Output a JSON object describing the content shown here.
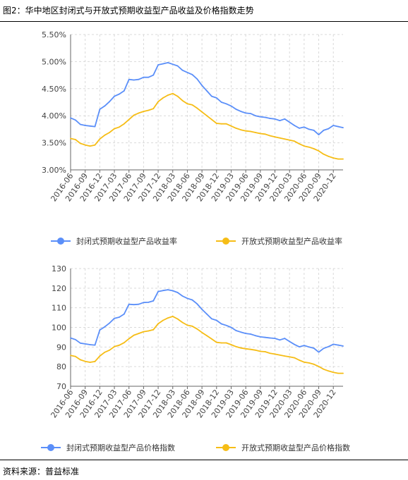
{
  "figure": {
    "title": "图2：华中地区封闭式与开放式预期收益型产品收益及价格指数走势",
    "source": "资料来源：普益标准"
  },
  "colors": {
    "closed": "#5b8ff9",
    "open": "#f6bd16",
    "grid": "#d9d9d9",
    "axis": "#666666"
  },
  "chart_data": [
    {
      "type": "line",
      "x_tick_labels": [
        "2016-06",
        "2016-09",
        "2016-12",
        "2017-03",
        "2017-06",
        "2017-09",
        "2017-12",
        "2018-03",
        "2018-06",
        "2018-09",
        "2018-12",
        "2019-03",
        "2019-06",
        "2019-09",
        "2019-12",
        "2020-03",
        "2020-06",
        "2020-09",
        "2020-12"
      ],
      "x_start": "2016-06",
      "x_step": "month",
      "ylim": [
        3.0,
        5.5
      ],
      "y_ticks": [
        3.0,
        3.5,
        4.0,
        4.5,
        5.0,
        5.5
      ],
      "y_tick_labels": [
        "3.00%",
        "3.50%",
        "4.00%",
        "4.50%",
        "5.00%",
        "5.50%"
      ],
      "grid": true,
      "legend_position": "bottom",
      "series": [
        {
          "name": "封闭式预期收益型产品收益率",
          "values": [
            3.96,
            3.92,
            3.84,
            3.82,
            3.81,
            3.8,
            4.12,
            4.18,
            4.26,
            4.36,
            4.4,
            4.46,
            4.67,
            4.66,
            4.67,
            4.71,
            4.71,
            4.75,
            4.94,
            4.96,
            4.98,
            4.95,
            4.92,
            4.84,
            4.8,
            4.76,
            4.68,
            4.56,
            4.46,
            4.36,
            4.33,
            4.25,
            4.22,
            4.18,
            4.12,
            4.08,
            4.05,
            4.04,
            4.0,
            3.98,
            3.97,
            3.95,
            3.94,
            3.91,
            3.94,
            3.88,
            3.82,
            3.77,
            3.79,
            3.75,
            3.73,
            3.65,
            3.73,
            3.76,
            3.82,
            3.8,
            3.78
          ]
        },
        {
          "name": "开放式预期收益型产品收益率",
          "values": [
            3.58,
            3.56,
            3.49,
            3.46,
            3.44,
            3.46,
            3.57,
            3.64,
            3.69,
            3.76,
            3.79,
            3.85,
            3.93,
            4.01,
            4.05,
            4.08,
            4.1,
            4.13,
            4.26,
            4.33,
            4.38,
            4.41,
            4.36,
            4.28,
            4.22,
            4.2,
            4.14,
            4.07,
            4.0,
            3.93,
            3.86,
            3.85,
            3.85,
            3.81,
            3.77,
            3.74,
            3.72,
            3.71,
            3.69,
            3.67,
            3.66,
            3.63,
            3.61,
            3.59,
            3.57,
            3.55,
            3.53,
            3.48,
            3.44,
            3.42,
            3.39,
            3.35,
            3.29,
            3.25,
            3.22,
            3.2,
            3.2
          ]
        }
      ]
    },
    {
      "type": "line",
      "x_tick_labels": [
        "2016-06",
        "2016-09",
        "2016-12",
        "2017-03",
        "2017-06",
        "2017-09",
        "2017-12",
        "2018-03",
        "2018-06",
        "2018-09",
        "2018-12",
        "2019-03",
        "2019-06",
        "2019-09",
        "2019-12",
        "2020-03",
        "2020-06",
        "2020-09",
        "2020-12"
      ],
      "x_start": "2016-06",
      "x_step": "month",
      "ylim": [
        70,
        130
      ],
      "y_ticks": [
        70,
        80,
        90,
        100,
        110,
        120,
        130
      ],
      "y_tick_labels": [
        "70",
        "80",
        "90",
        "100",
        "110",
        "120",
        "130"
      ],
      "grid": true,
      "legend_position": "bottom",
      "series": [
        {
          "name": "封闭式预期收益型产品价格指数",
          "values": [
            94.6,
            93.8,
            92.0,
            91.6,
            91.2,
            91.0,
            98.7,
            100.3,
            102.2,
            104.6,
            105.2,
            106.8,
            111.8,
            111.6,
            111.8,
            112.7,
            112.8,
            113.5,
            118.3,
            118.8,
            119.2,
            118.7,
            117.8,
            116.0,
            114.8,
            114.0,
            112.0,
            109.2,
            106.8,
            104.4,
            103.6,
            101.8,
            101.0,
            100.0,
            98.4,
            97.6,
            96.9,
            96.6,
            95.8,
            95.2,
            94.9,
            94.6,
            94.4,
            93.6,
            94.4,
            92.8,
            91.3,
            90.1,
            90.8,
            90.0,
            89.4,
            87.4,
            89.3,
            90.2,
            91.4,
            91.0,
            90.5
          ]
        },
        {
          "name": "开放式预期收益型产品价格指数",
          "values": [
            85.7,
            85.2,
            83.5,
            82.7,
            82.2,
            82.6,
            85.4,
            87.3,
            88.4,
            90.2,
            90.9,
            92.2,
            94.2,
            96.0,
            96.9,
            97.8,
            98.2,
            98.8,
            101.9,
            103.6,
            104.8,
            105.6,
            104.3,
            102.5,
            101.1,
            100.6,
            99.2,
            97.4,
            95.8,
            94.1,
            92.4,
            92.1,
            92.1,
            91.2,
            90.2,
            89.5,
            89.1,
            88.8,
            88.4,
            87.8,
            87.6,
            86.8,
            86.4,
            85.9,
            85.4,
            85.0,
            84.5,
            83.3,
            82.3,
            81.9,
            81.2,
            80.1,
            78.7,
            77.8,
            77.1,
            76.6,
            76.6
          ]
        }
      ]
    }
  ]
}
